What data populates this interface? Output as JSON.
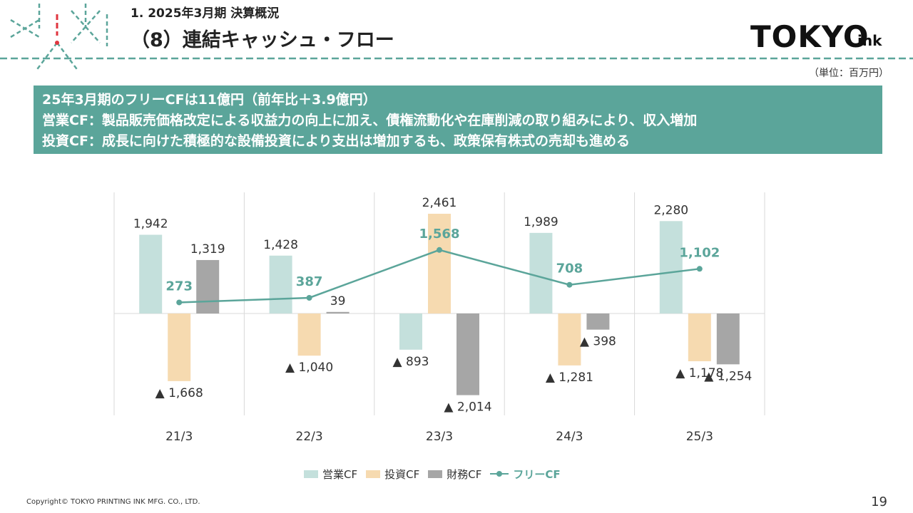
{
  "header": {
    "subtitle": "1. 2025年3月期 決算概況",
    "title": "（8）連結キャッシュ・フロー",
    "brand_main": "TOKYO",
    "brand_sub": "ink",
    "unit": "（単位：百万円）"
  },
  "summary": {
    "line1": "25年3月期のフリーCFは11億円（前年比＋3.9億円）",
    "line2": "営業CF：製品販売価格改定による収益力の向上に加え、債権流動化や在庫削減の取り組みにより、収入増加",
    "line3": "投資CF：成長に向けた積極的な設備投資により支出は増加するも、政策保有株式の売却も進める"
  },
  "chart_data": {
    "type": "bar",
    "categories": [
      "21/3",
      "22/3",
      "23/3",
      "24/3",
      "25/3"
    ],
    "series": [
      {
        "name": "営業CF",
        "type": "bar",
        "color": "#c4e0dc",
        "values": [
          1942,
          1428,
          -893,
          1989,
          2280
        ],
        "labels": [
          "1,942",
          "1,428",
          "▲ 893",
          "1,989",
          "2,280"
        ]
      },
      {
        "name": "投資CF",
        "type": "bar",
        "color": "#f6dab0",
        "values": [
          -1668,
          -1040,
          2461,
          -1281,
          -1178
        ],
        "labels": [
          "▲ 1,668",
          "▲ 1,040",
          "2,461",
          "▲ 1,281",
          "▲ 1,178"
        ]
      },
      {
        "name": "財務CF",
        "type": "bar",
        "color": "#a6a6a6",
        "values": [
          1319,
          39,
          -2014,
          -398,
          -1254
        ],
        "labels": [
          "1,319",
          "39",
          "▲ 2,014",
          "▲ 398",
          "▲ 1,254"
        ]
      },
      {
        "name": "フリーCF",
        "type": "line",
        "color": "#5ba59a",
        "values": [
          273,
          387,
          1568,
          708,
          1102
        ],
        "labels": [
          "273",
          "387",
          "1,568",
          "708",
          "1,102"
        ]
      }
    ],
    "grid": "vertical",
    "legend": "bottom"
  },
  "footer": {
    "copyright": "Copyright© TOKYO PRINTING INK MFG. CO., LTD.",
    "page": "19"
  }
}
